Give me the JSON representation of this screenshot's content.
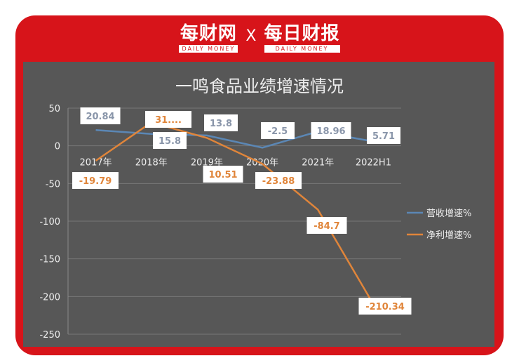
{
  "header": {
    "logo1": "每财网",
    "logo1_en": "DAILY MONEY",
    "separator": "X",
    "logo2": "每日财报",
    "logo2_en": "DAILY MONEY"
  },
  "chart_data": {
    "type": "line",
    "title": "一鸣食品业绩增速情况",
    "categories": [
      "2017年",
      "2018年",
      "2019年",
      "2020年",
      "2021年",
      "2022H1"
    ],
    "ylim": [
      -250,
      50
    ],
    "yticks": [
      50,
      0,
      -50,
      -100,
      -150,
      -200,
      -250
    ],
    "grid": true,
    "legend_position": "right",
    "series": [
      {
        "name": "营收增速%",
        "color": "#5b87b5",
        "values": [
          20.84,
          15.8,
          13.8,
          -2.5,
          18.96,
          5.71
        ],
        "labels": [
          "20.84",
          "15.8",
          "13.8",
          "-2.5",
          "18.96",
          "5.71"
        ]
      },
      {
        "name": "净利增速%",
        "color": "#e0853a",
        "values": [
          -19.79,
          31,
          10.51,
          -23.88,
          -84.7,
          -210.34
        ],
        "labels": [
          "-19.79",
          "31....",
          "10.51",
          "-23.88",
          "-84.7",
          "-210.34"
        ]
      }
    ]
  }
}
